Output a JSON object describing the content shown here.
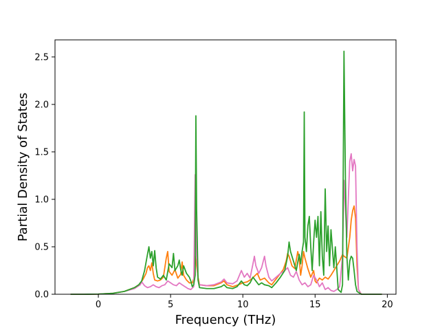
{
  "chart_data": {
    "type": "line",
    "title": "",
    "xlabel": "Frequency (THz)",
    "ylabel": "Partial Density of States",
    "xlim": [
      -3.0,
      20.6
    ],
    "ylim": [
      0.0,
      2.68
    ],
    "xticks": [
      0,
      5,
      10,
      15,
      20
    ],
    "xtick_labels": [
      "0",
      "5",
      "10",
      "15",
      "20"
    ],
    "yticks": [
      0.0,
      0.5,
      1.0,
      1.5,
      2.0,
      2.5
    ],
    "ytick_labels": [
      "0.0",
      "0.5",
      "1.0",
      "1.5",
      "2.0",
      "2.5"
    ],
    "grid": false,
    "legend": "none",
    "series": [
      {
        "color": "#ff7f0e",
        "points": [
          [
            -1.9,
            0
          ],
          [
            -1.0,
            0
          ],
          [
            0.0,
            0.002
          ],
          [
            1.0,
            0.01
          ],
          [
            1.8,
            0.03
          ],
          [
            2.5,
            0.07
          ],
          [
            2.9,
            0.11
          ],
          [
            3.1,
            0.16
          ],
          [
            3.3,
            0.22
          ],
          [
            3.4,
            0.28
          ],
          [
            3.5,
            0.3
          ],
          [
            3.6,
            0.25
          ],
          [
            3.7,
            0.33
          ],
          [
            3.8,
            0.22
          ],
          [
            3.9,
            0.15
          ],
          [
            4.1,
            0.14
          ],
          [
            4.3,
            0.15
          ],
          [
            4.5,
            0.18
          ],
          [
            4.7,
            0.38
          ],
          [
            4.8,
            0.45
          ],
          [
            4.9,
            0.24
          ],
          [
            5.1,
            0.2
          ],
          [
            5.3,
            0.26
          ],
          [
            5.5,
            0.17
          ],
          [
            5.7,
            0.21
          ],
          [
            5.8,
            0.34
          ],
          [
            5.9,
            0.2
          ],
          [
            6.1,
            0.15
          ],
          [
            6.3,
            0.12
          ],
          [
            6.5,
            0.12
          ],
          [
            6.6,
            0.16
          ],
          [
            6.7,
            0.4
          ],
          [
            6.8,
            0.3
          ],
          [
            6.9,
            0.18
          ],
          [
            7.0,
            0.1
          ],
          [
            7.5,
            0.09
          ],
          [
            8.0,
            0.09
          ],
          [
            8.5,
            0.12
          ],
          [
            8.7,
            0.14
          ],
          [
            8.9,
            0.1
          ],
          [
            9.3,
            0.08
          ],
          [
            9.7,
            0.1
          ],
          [
            10.0,
            0.12
          ],
          [
            10.3,
            0.13
          ],
          [
            10.6,
            0.16
          ],
          [
            10.8,
            0.19
          ],
          [
            11.0,
            0.22
          ],
          [
            11.2,
            0.15
          ],
          [
            11.5,
            0.17
          ],
          [
            11.8,
            0.12
          ],
          [
            12.0,
            0.1
          ],
          [
            12.3,
            0.16
          ],
          [
            12.6,
            0.22
          ],
          [
            12.8,
            0.26
          ],
          [
            13.0,
            0.35
          ],
          [
            13.1,
            0.43
          ],
          [
            13.2,
            0.4
          ],
          [
            13.4,
            0.3
          ],
          [
            13.6,
            0.27
          ],
          [
            13.8,
            0.45
          ],
          [
            13.9,
            0.38
          ],
          [
            14.0,
            0.2
          ],
          [
            14.1,
            0.3
          ],
          [
            14.2,
            0.45
          ],
          [
            14.3,
            0.38
          ],
          [
            14.5,
            0.27
          ],
          [
            14.7,
            0.18
          ],
          [
            14.9,
            0.25
          ],
          [
            15.0,
            0.14
          ],
          [
            15.1,
            0.12
          ],
          [
            15.3,
            0.17
          ],
          [
            15.5,
            0.15
          ],
          [
            15.7,
            0.18
          ],
          [
            15.9,
            0.16
          ],
          [
            16.1,
            0.2
          ],
          [
            16.3,
            0.25
          ],
          [
            16.5,
            0.3
          ],
          [
            16.7,
            0.35
          ],
          [
            16.9,
            0.42
          ],
          [
            17.0,
            0.4
          ],
          [
            17.2,
            0.38
          ],
          [
            17.4,
            0.6
          ],
          [
            17.5,
            0.78
          ],
          [
            17.6,
            0.88
          ],
          [
            17.7,
            0.93
          ],
          [
            17.8,
            0.8
          ],
          [
            17.9,
            0.3
          ],
          [
            18.0,
            0.05
          ],
          [
            18.2,
            0.0
          ],
          [
            19.6,
            0.0
          ]
        ]
      },
      {
        "color": "#e377c2",
        "points": [
          [
            -1.9,
            0
          ],
          [
            -1.0,
            0
          ],
          [
            0.0,
            0.002
          ],
          [
            1.0,
            0.01
          ],
          [
            1.8,
            0.03
          ],
          [
            2.5,
            0.06
          ],
          [
            2.9,
            0.1
          ],
          [
            3.0,
            0.13
          ],
          [
            3.2,
            0.09
          ],
          [
            3.4,
            0.07
          ],
          [
            3.6,
            0.08
          ],
          [
            3.8,
            0.1
          ],
          [
            4.0,
            0.08
          ],
          [
            4.2,
            0.07
          ],
          [
            4.4,
            0.09
          ],
          [
            4.6,
            0.1
          ],
          [
            4.8,
            0.14
          ],
          [
            5.0,
            0.12
          ],
          [
            5.2,
            0.1
          ],
          [
            5.4,
            0.09
          ],
          [
            5.6,
            0.12
          ],
          [
            5.8,
            0.1
          ],
          [
            6.0,
            0.08
          ],
          [
            6.2,
            0.06
          ],
          [
            6.4,
            0.05
          ],
          [
            6.6,
            0.08
          ],
          [
            6.7,
            1.26
          ],
          [
            6.8,
            0.4
          ],
          [
            6.9,
            0.15
          ],
          [
            7.0,
            0.1
          ],
          [
            7.5,
            0.09
          ],
          [
            8.0,
            0.1
          ],
          [
            8.5,
            0.13
          ],
          [
            8.7,
            0.16
          ],
          [
            8.9,
            0.12
          ],
          [
            9.3,
            0.11
          ],
          [
            9.6,
            0.14
          ],
          [
            9.9,
            0.25
          ],
          [
            10.1,
            0.18
          ],
          [
            10.3,
            0.22
          ],
          [
            10.5,
            0.17
          ],
          [
            10.7,
            0.32
          ],
          [
            10.8,
            0.4
          ],
          [
            10.9,
            0.3
          ],
          [
            11.1,
            0.22
          ],
          [
            11.3,
            0.28
          ],
          [
            11.5,
            0.4
          ],
          [
            11.6,
            0.3
          ],
          [
            11.8,
            0.18
          ],
          [
            12.0,
            0.14
          ],
          [
            12.3,
            0.18
          ],
          [
            12.6,
            0.22
          ],
          [
            12.9,
            0.25
          ],
          [
            13.1,
            0.28
          ],
          [
            13.3,
            0.2
          ],
          [
            13.5,
            0.18
          ],
          [
            13.7,
            0.24
          ],
          [
            13.9,
            0.15
          ],
          [
            14.1,
            0.1
          ],
          [
            14.3,
            0.12
          ],
          [
            14.5,
            0.08
          ],
          [
            14.7,
            0.1
          ],
          [
            14.9,
            0.2
          ],
          [
            15.1,
            0.15
          ],
          [
            15.3,
            0.08
          ],
          [
            15.5,
            0.12
          ],
          [
            15.7,
            0.05
          ],
          [
            15.9,
            0.07
          ],
          [
            16.1,
            0.04
          ],
          [
            16.3,
            0.03
          ],
          [
            16.5,
            0.05
          ],
          [
            16.7,
            0.08
          ],
          [
            16.9,
            0.4
          ],
          [
            17.0,
            1.2
          ],
          [
            17.1,
            0.9
          ],
          [
            17.2,
            0.6
          ],
          [
            17.4,
            1.4
          ],
          [
            17.5,
            1.48
          ],
          [
            17.6,
            1.3
          ],
          [
            17.7,
            1.42
          ],
          [
            17.8,
            1.35
          ],
          [
            17.9,
            0.5
          ],
          [
            18.0,
            0.05
          ],
          [
            18.2,
            0.0
          ],
          [
            19.6,
            0.0
          ]
        ]
      },
      {
        "color": "#2ca02c",
        "points": [
          [
            -1.9,
            0
          ],
          [
            -1.0,
            0
          ],
          [
            0.0,
            0.002
          ],
          [
            1.0,
            0.01
          ],
          [
            1.8,
            0.03
          ],
          [
            2.5,
            0.07
          ],
          [
            2.8,
            0.1
          ],
          [
            3.0,
            0.14
          ],
          [
            3.2,
            0.25
          ],
          [
            3.4,
            0.42
          ],
          [
            3.5,
            0.5
          ],
          [
            3.6,
            0.38
          ],
          [
            3.7,
            0.45
          ],
          [
            3.8,
            0.3
          ],
          [
            3.9,
            0.46
          ],
          [
            4.0,
            0.28
          ],
          [
            4.1,
            0.18
          ],
          [
            4.3,
            0.16
          ],
          [
            4.5,
            0.2
          ],
          [
            4.7,
            0.15
          ],
          [
            4.9,
            0.32
          ],
          [
            5.1,
            0.28
          ],
          [
            5.2,
            0.43
          ],
          [
            5.3,
            0.25
          ],
          [
            5.5,
            0.3
          ],
          [
            5.6,
            0.36
          ],
          [
            5.7,
            0.26
          ],
          [
            5.8,
            0.2
          ],
          [
            5.9,
            0.3
          ],
          [
            6.1,
            0.22
          ],
          [
            6.3,
            0.18
          ],
          [
            6.4,
            0.14
          ],
          [
            6.5,
            0.08
          ],
          [
            6.6,
            0.1
          ],
          [
            6.7,
            0.2
          ],
          [
            6.75,
            1.88
          ],
          [
            6.8,
            0.9
          ],
          [
            6.9,
            0.15
          ],
          [
            7.0,
            0.07
          ],
          [
            7.5,
            0.06
          ],
          [
            8.0,
            0.06
          ],
          [
            8.5,
            0.08
          ],
          [
            8.7,
            0.1
          ],
          [
            8.9,
            0.07
          ],
          [
            9.3,
            0.06
          ],
          [
            9.6,
            0.08
          ],
          [
            9.9,
            0.14
          ],
          [
            10.1,
            0.1
          ],
          [
            10.3,
            0.09
          ],
          [
            10.5,
            0.12
          ],
          [
            10.7,
            0.18
          ],
          [
            10.9,
            0.14
          ],
          [
            11.1,
            0.1
          ],
          [
            11.3,
            0.12
          ],
          [
            11.5,
            0.1
          ],
          [
            11.8,
            0.09
          ],
          [
            12.0,
            0.07
          ],
          [
            12.3,
            0.12
          ],
          [
            12.6,
            0.18
          ],
          [
            12.9,
            0.25
          ],
          [
            13.1,
            0.4
          ],
          [
            13.2,
            0.55
          ],
          [
            13.3,
            0.45
          ],
          [
            13.5,
            0.35
          ],
          [
            13.7,
            0.25
          ],
          [
            13.9,
            0.42
          ],
          [
            14.0,
            0.32
          ],
          [
            14.1,
            0.45
          ],
          [
            14.2,
            0.55
          ],
          [
            14.25,
            1.92
          ],
          [
            14.3,
            0.6
          ],
          [
            14.4,
            0.45
          ],
          [
            14.5,
            0.72
          ],
          [
            14.6,
            0.82
          ],
          [
            14.7,
            0.5
          ],
          [
            14.8,
            0.25
          ],
          [
            14.9,
            0.55
          ],
          [
            15.0,
            0.78
          ],
          [
            15.1,
            0.6
          ],
          [
            15.2,
            0.82
          ],
          [
            15.3,
            0.3
          ],
          [
            15.4,
            0.87
          ],
          [
            15.5,
            0.4
          ],
          [
            15.6,
            0.2
          ],
          [
            15.7,
            1.11
          ],
          [
            15.8,
            0.45
          ],
          [
            15.9,
            0.72
          ],
          [
            16.0,
            0.3
          ],
          [
            16.1,
            0.68
          ],
          [
            16.3,
            0.28
          ],
          [
            16.4,
            0.5
          ],
          [
            16.6,
            0.05
          ],
          [
            16.8,
            0.02
          ],
          [
            16.9,
            0.1
          ],
          [
            17.0,
            2.56
          ],
          [
            17.1,
            1.2
          ],
          [
            17.2,
            0.4
          ],
          [
            17.3,
            0.15
          ],
          [
            17.4,
            0.35
          ],
          [
            17.5,
            0.4
          ],
          [
            17.6,
            0.38
          ],
          [
            17.7,
            0.25
          ],
          [
            17.8,
            0.1
          ],
          [
            17.9,
            0.03
          ],
          [
            18.2,
            0.0
          ],
          [
            19.6,
            0.0
          ]
        ]
      }
    ]
  }
}
